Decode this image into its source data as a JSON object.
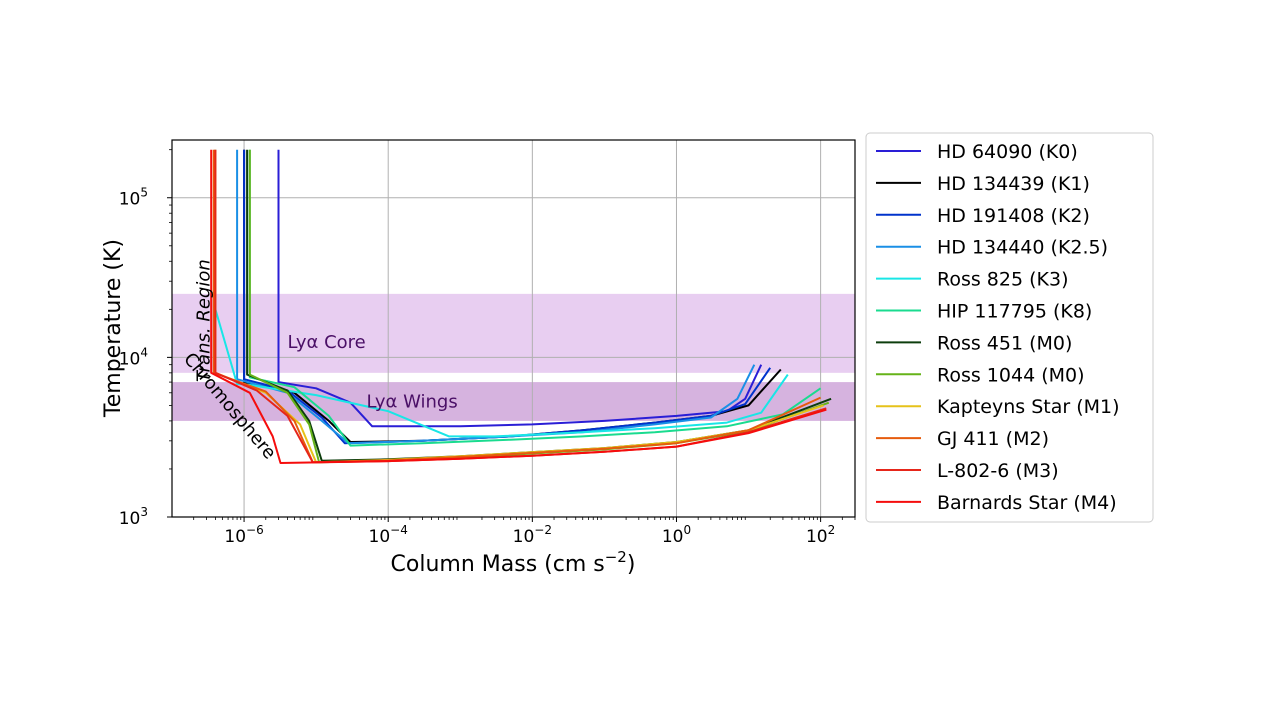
{
  "chart_data": {
    "type": "line",
    "xlabel": "Column Mass (cm s",
    "xlabel_sup": "−2",
    "xlabel_end": ")",
    "ylabel": "Temperature (K)",
    "x_scale": "log",
    "y_scale": "log",
    "xlim": [
      1e-07,
      300
    ],
    "ylim": [
      1000,
      230000
    ],
    "grid": true,
    "legend_position": "right outside",
    "x_ticks": [
      {
        "value": 1e-06,
        "base": "10",
        "exp": "−6"
      },
      {
        "value": 0.0001,
        "base": "10",
        "exp": "−4"
      },
      {
        "value": 0.01,
        "base": "10",
        "exp": "−2"
      },
      {
        "value": 1,
        "base": "10",
        "exp": "0"
      },
      {
        "value": 100,
        "base": "10",
        "exp": "2"
      }
    ],
    "y_ticks": [
      {
        "value": 1000,
        "base": "10",
        "exp": "3"
      },
      {
        "value": 10000,
        "base": "10",
        "exp": "4"
      },
      {
        "value": 100000,
        "base": "10",
        "exp": "5"
      }
    ],
    "bands": [
      {
        "label": "Lyα Core",
        "ymin": 8000,
        "ymax": 25000,
        "color": "#c27ed9",
        "opacity": 0.38,
        "label_x": 4e-06,
        "label_y": 12500
      },
      {
        "label": "Lyα Wings",
        "ymin": 4000,
        "ymax": 7000,
        "color": "#a557b8",
        "opacity": 0.45,
        "label_x": 5e-05,
        "label_y": 5300
      }
    ],
    "annotations": [
      {
        "text": "Trans. Region",
        "x": 3.3e-07,
        "y": 17000,
        "rotation": -90,
        "italic": true
      },
      {
        "text": "Chromosphere",
        "x": 5.5e-07,
        "y": 4700,
        "rotation": 50,
        "italic": false
      }
    ],
    "series": [
      {
        "name": "HD 64090 (K0)",
        "color": "#2a1ed6",
        "x": [
          3e-06,
          3e-06,
          3e-06,
          1e-05,
          3e-05,
          6e-05,
          0.001,
          0.01,
          0.1,
          1,
          5,
          9,
          15
        ],
        "y": [
          200000,
          20000,
          7000,
          6400,
          5200,
          3700,
          3700,
          3800,
          4000,
          4300,
          4600,
          5500,
          9000
        ]
      },
      {
        "name": "HD 134439 (K1)",
        "color": "#000000",
        "x": [
          1e-06,
          1e-06,
          1e-06,
          5e-06,
          1.5e-05,
          3e-05,
          0.0003,
          0.005,
          0.05,
          0.5,
          3,
          10,
          28
        ],
        "y": [
          200000,
          20000,
          7000,
          6000,
          4000,
          2950,
          3000,
          3200,
          3500,
          3900,
          4300,
          5000,
          8400
        ]
      },
      {
        "name": "HD 191408 (K2)",
        "color": "#0033cc",
        "x": [
          1e-06,
          1e-06,
          1e-06,
          4e-06,
          1.2e-05,
          2.5e-05,
          0.0003,
          0.005,
          0.05,
          0.5,
          3,
          9,
          20
        ],
        "y": [
          200000,
          20000,
          7300,
          6200,
          4200,
          2900,
          3000,
          3200,
          3500,
          3900,
          4300,
          5100,
          8600
        ]
      },
      {
        "name": "HD 134440 (K2.5)",
        "color": "#1a8fe6",
        "x": [
          8e-07,
          8e-07,
          8e-07,
          4e-06,
          1.2e-05,
          2.8e-05,
          0.0003,
          0.005,
          0.05,
          0.5,
          3,
          7,
          12
        ],
        "y": [
          200000,
          20000,
          7300,
          6000,
          4000,
          2900,
          3000,
          3200,
          3400,
          3800,
          4200,
          5500,
          9000
        ]
      },
      {
        "name": "Ross 825 (K3)",
        "color": "#19e6e6",
        "x": [
          4e-07,
          4e-07,
          8e-07,
          1e-06,
          1e-05,
          0.0001,
          0.0007,
          0.003,
          0.05,
          0.5,
          5,
          15,
          35
        ],
        "y": [
          200000,
          20000,
          6800,
          6800,
          5800,
          4600,
          3200,
          3200,
          3400,
          3600,
          3900,
          4500,
          7800
        ]
      },
      {
        "name": "HIP 117795 (K8)",
        "color": "#1adb8f",
        "x": [
          1.2e-06,
          1.2e-06,
          1.2e-06,
          5e-06,
          1.5e-05,
          3e-05,
          0.0003,
          0.005,
          0.05,
          0.5,
          5,
          30,
          100
        ],
        "y": [
          200000,
          20000,
          7500,
          6500,
          4300,
          2800,
          2900,
          3050,
          3200,
          3400,
          3700,
          4400,
          6400
        ]
      },
      {
        "name": "Ross 451 (M0)",
        "color": "#0d3d0d",
        "x": [
          1.1e-06,
          1.1e-06,
          1.1e-06,
          4e-06,
          8e-06,
          1.2e-05,
          0.0001,
          0.001,
          0.01,
          0.1,
          1,
          10,
          140
        ],
        "y": [
          200000,
          20000,
          7800,
          6200,
          4000,
          2250,
          2300,
          2400,
          2550,
          2700,
          2950,
          3500,
          5500
        ]
      },
      {
        "name": "Ross 1044 (M0)",
        "color": "#66b319",
        "x": [
          1.2e-06,
          1.2e-06,
          1.2e-06,
          4e-06,
          8e-06,
          1.1e-05,
          0.0001,
          0.001,
          0.01,
          0.1,
          1,
          10,
          130
        ],
        "y": [
          200000,
          20000,
          7800,
          6000,
          3800,
          2200,
          2250,
          2350,
          2500,
          2650,
          2900,
          3450,
          5200
        ]
      },
      {
        "name": "Kapteyns Star (M1)",
        "color": "#e6c21a",
        "x": [
          4e-07,
          4e-07,
          4e-07,
          2e-06,
          6e-06,
          1e-05,
          0.0001,
          0.001,
          0.01,
          0.1,
          1,
          10,
          110
        ],
        "y": [
          200000,
          20000,
          8000,
          6000,
          3800,
          2200,
          2280,
          2400,
          2550,
          2700,
          2950,
          3500,
          5000
        ]
      },
      {
        "name": "GJ 411 (M2)",
        "color": "#e65c0d",
        "x": [
          3.8e-07,
          3.8e-07,
          3.8e-07,
          2e-06,
          5e-06,
          9e-06,
          0.0001,
          0.001,
          0.01,
          0.1,
          1,
          10,
          100
        ],
        "y": [
          200000,
          20000,
          8000,
          6100,
          4000,
          2200,
          2260,
          2380,
          2520,
          2680,
          2900,
          3500,
          5600
        ]
      },
      {
        "name": "L-802-6 (M3)",
        "color": "#e6261a",
        "x": [
          4e-07,
          4e-07,
          4e-07,
          1.5e-06,
          4e-06,
          9e-06,
          0.0001,
          0.001,
          0.01,
          0.1,
          1,
          10,
          120
        ],
        "y": [
          200000,
          20000,
          8000,
          6200,
          4300,
          2200,
          2240,
          2320,
          2420,
          2560,
          2760,
          3400,
          4800
        ]
      },
      {
        "name": "Barnards Star (M4)",
        "color": "#f50d0d",
        "x": [
          3.5e-07,
          3.5e-07,
          3.5e-07,
          1.2e-06,
          2.5e-06,
          3.2e-06,
          0.0001,
          0.001,
          0.01,
          0.1,
          1,
          10,
          120
        ],
        "y": [
          200000,
          20000,
          8000,
          6000,
          3200,
          2180,
          2240,
          2320,
          2420,
          2560,
          2760,
          3350,
          4700
        ]
      }
    ]
  }
}
